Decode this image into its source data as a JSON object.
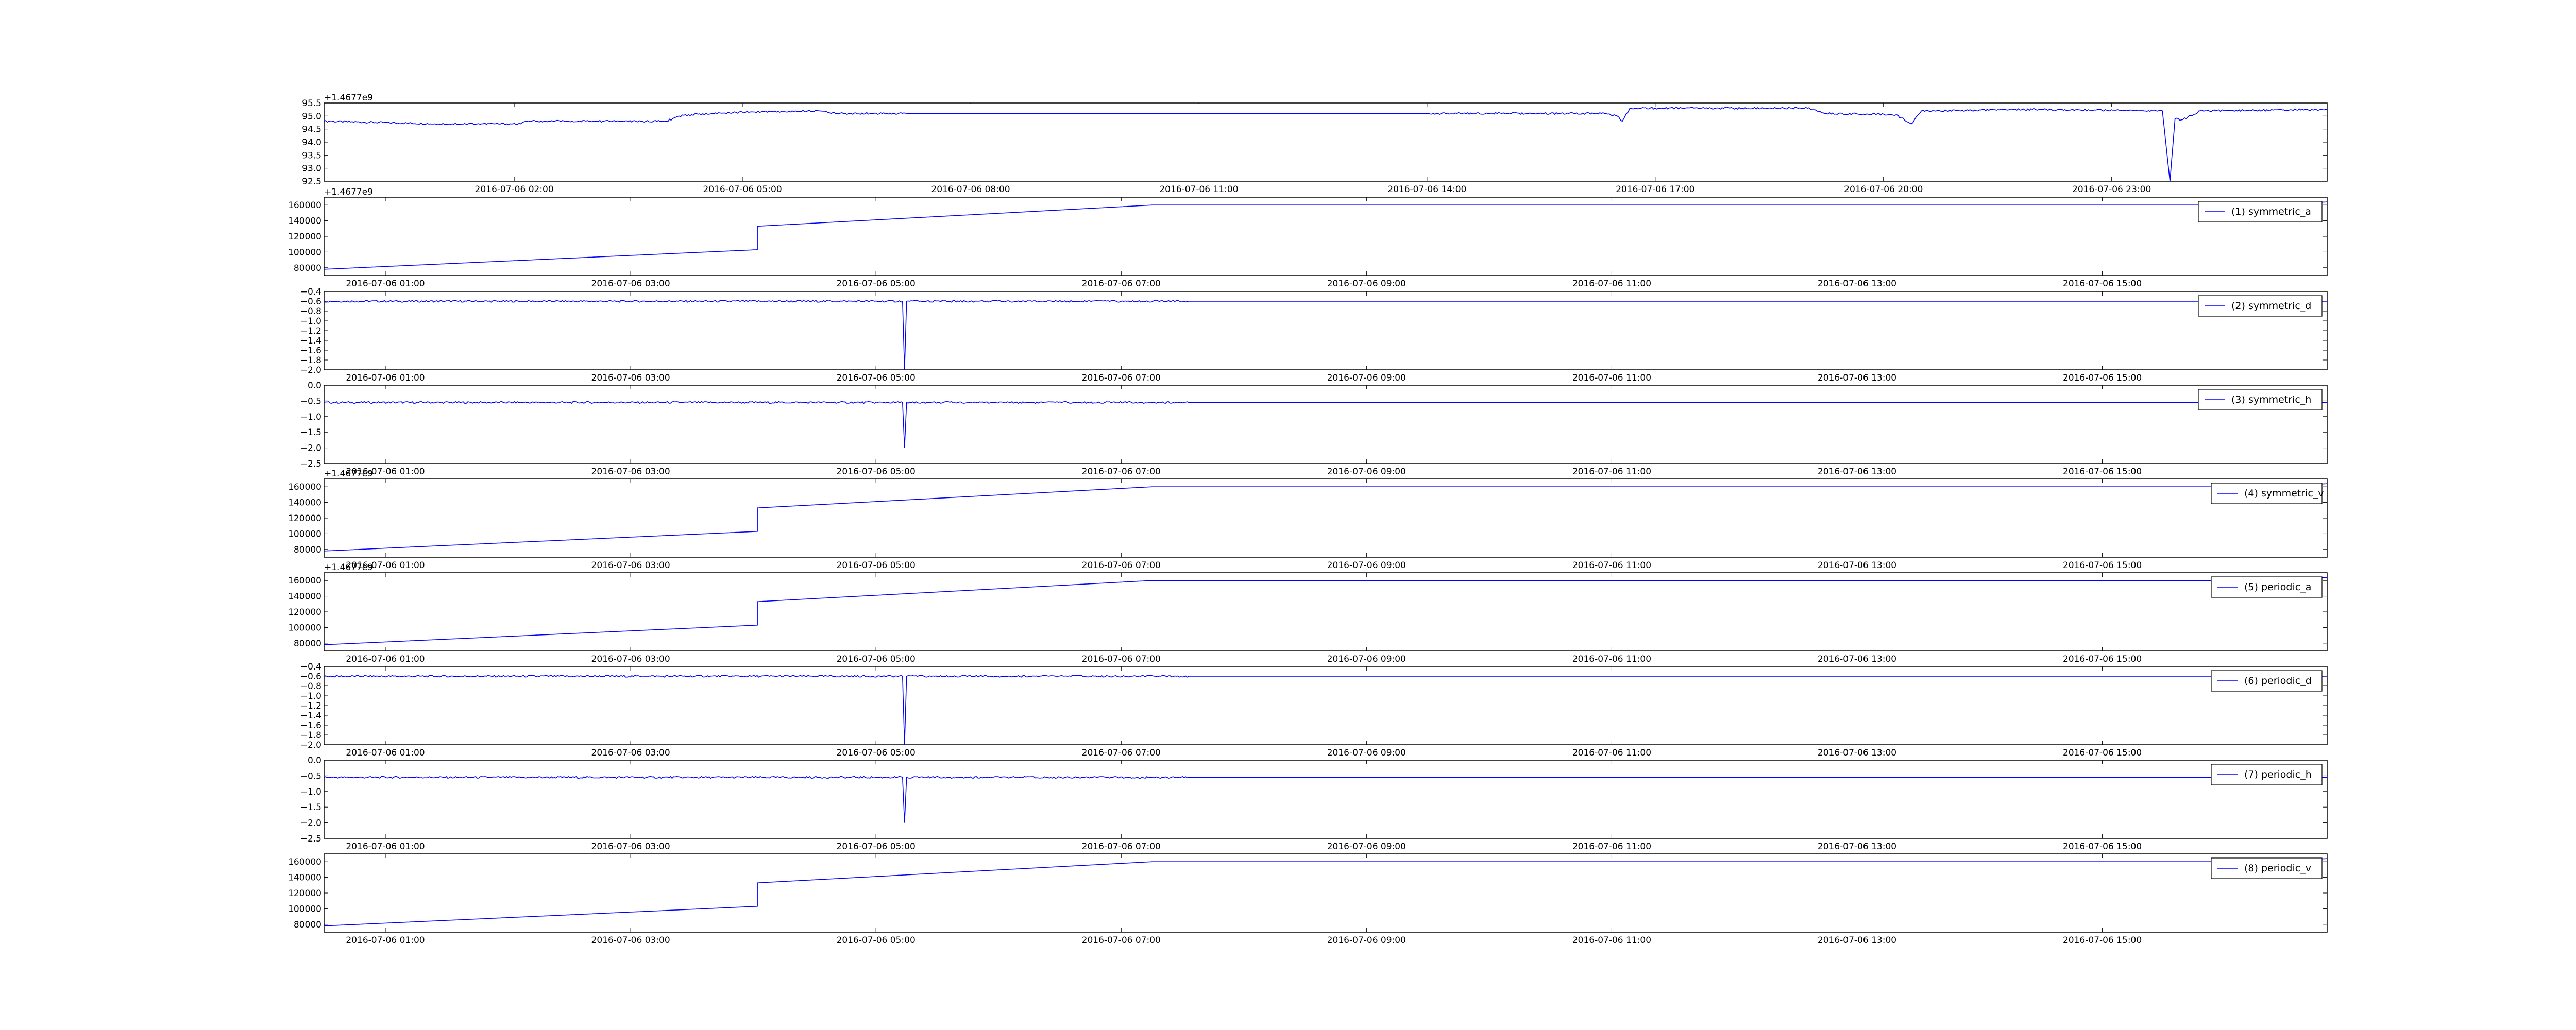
{
  "figure": {
    "background": "#ffffff",
    "line_color": "#0000ff"
  },
  "chart_data": [
    {
      "type": "line",
      "title": "",
      "xlabel": "",
      "ylabel": "",
      "offset_label": "+1.4677e9",
      "ylim": [
        92.5,
        95.5
      ],
      "yticks": [
        92.5,
        93.0,
        93.5,
        94.0,
        94.5,
        95.0,
        95.5
      ],
      "ytick_labels": [
        "92.5",
        "93.0",
        "93.5",
        "94.0",
        "94.5",
        "95.0",
        "95.5"
      ],
      "xlim": [
        "2016-07-05 23:30",
        "2016-07-07 01:50"
      ],
      "xtick_labels": [
        "2016-07-06 02:00",
        "2016-07-06 05:00",
        "2016-07-06 08:00",
        "2016-07-06 11:00",
        "2016-07-06 14:00",
        "2016-07-06 17:00",
        "2016-07-06 20:00",
        "2016-07-06 23:00"
      ],
      "grid": false,
      "legend": null,
      "series": [
        {
          "color": "#0000ff",
          "x": [
            "2016-07-05 23:30",
            "2016-07-06 01:00",
            "2016-07-06 02:05",
            "2016-07-06 02:10",
            "2016-07-06 03:10",
            "2016-07-06 03:15",
            "2016-07-06 04:00",
            "2016-07-06 04:10",
            "2016-07-06 04:20",
            "2016-07-06 05:00",
            "2016-07-06 06:00",
            "2016-07-06 06:10",
            "2016-07-06 07:00",
            "2016-07-06 14:05",
            "2016-07-06 16:20",
            "2016-07-06 16:30",
            "2016-07-06 16:34",
            "2016-07-06 16:40",
            "2016-07-06 17:00",
            "2016-07-06 19:00",
            "2016-07-06 19:15",
            "2016-07-06 20:10",
            "2016-07-06 20:22",
            "2016-07-06 20:30",
            "2016-07-06 20:40",
            "2016-07-06 22:00",
            "2016-07-06 23:40",
            "2016-07-06 23:46",
            "2016-07-06 23:50",
            "2016-07-06 23:55",
            "2016-07-07 00:10",
            "2016-07-07 01:50"
          ],
          "y": [
            94.8,
            94.7,
            94.7,
            94.8,
            94.8,
            94.8,
            94.8,
            95.0,
            95.05,
            95.15,
            95.2,
            95.1,
            95.1,
            95.1,
            95.1,
            95.0,
            94.8,
            95.3,
            95.3,
            95.3,
            95.1,
            95.05,
            94.7,
            95.2,
            95.2,
            95.25,
            95.2,
            92.5,
            94.9,
            94.85,
            95.2,
            95.25
          ]
        }
      ],
      "gaps": [
        [
          "2016-07-06 07:10",
          "2016-07-06 14:00"
        ]
      ]
    },
    {
      "type": "line",
      "title": "",
      "xlabel": "",
      "ylabel": "",
      "offset_label": "+1.4677e9",
      "ylim": [
        70000,
        170000
      ],
      "yticks": [
        80000,
        100000,
        120000,
        140000,
        160000
      ],
      "ytick_labels": [
        "80000",
        "100000",
        "120000",
        "140000",
        "160000"
      ],
      "xlim": [
        "2016-07-06 00:30",
        "2016-07-06 16:50"
      ],
      "xtick_labels": [
        "2016-07-06 01:00",
        "2016-07-06 03:00",
        "2016-07-06 05:00",
        "2016-07-06 07:00",
        "2016-07-06 09:00",
        "2016-07-06 11:00",
        "2016-07-06 13:00",
        "2016-07-06 15:00"
      ],
      "grid": false,
      "legend": {
        "position": "right",
        "label": "(1) symmetric_a"
      },
      "series": [
        {
          "name": "(1) symmetric_a",
          "color": "#0000ff",
          "x": [
            "2016-07-06 00:30",
            "2016-07-06 04:02",
            "2016-07-06 04:02",
            "2016-07-06 07:15",
            "2016-07-06 16:20",
            "2016-07-06 16:50"
          ],
          "y": [
            78000,
            103000,
            133000,
            160000,
            160000,
            164000
          ]
        }
      ]
    },
    {
      "type": "line",
      "title": "",
      "xlabel": "",
      "ylabel": "",
      "ylim": [
        -2.0,
        -0.4
      ],
      "yticks": [
        -2.0,
        -1.8,
        -1.6,
        -1.4,
        -1.2,
        -1.0,
        -0.8,
        -0.6,
        -0.4
      ],
      "ytick_labels": [
        "−2.0",
        "−1.8",
        "−1.6",
        "−1.4",
        "−1.2",
        "−1.0",
        "−0.8",
        "−0.6",
        "−0.4"
      ],
      "xlim": [
        "2016-07-06 00:30",
        "2016-07-06 16:50"
      ],
      "xtick_labels": [
        "2016-07-06 01:00",
        "2016-07-06 03:00",
        "2016-07-06 05:00",
        "2016-07-06 07:00",
        "2016-07-06 09:00",
        "2016-07-06 11:00",
        "2016-07-06 13:00",
        "2016-07-06 15:00"
      ],
      "grid": false,
      "legend": {
        "position": "right",
        "label": "(2) symmetric_d"
      },
      "series": [
        {
          "name": "(2) symmetric_d",
          "color": "#0000ff",
          "x": [
            "2016-07-06 00:30",
            "2016-07-06 05:13",
            "2016-07-06 05:14",
            "2016-07-06 05:15",
            "2016-07-06 07:33",
            "2016-07-06 16:50"
          ],
          "y": [
            -0.6,
            -0.6,
            -2.0,
            -0.6,
            -0.6,
            -0.6
          ]
        }
      ]
    },
    {
      "type": "line",
      "title": "",
      "xlabel": "",
      "ylabel": "",
      "ylim": [
        -2.5,
        0.0
      ],
      "yticks": [
        -2.5,
        -2.0,
        -1.5,
        -1.0,
        -0.5,
        0.0
      ],
      "ytick_labels": [
        "−2.5",
        "−2.0",
        "−1.5",
        "−1.0",
        "−0.5",
        "0.0"
      ],
      "xlim": [
        "2016-07-06 00:30",
        "2016-07-06 16:50"
      ],
      "xtick_labels": [
        "2016-07-06 01:00",
        "2016-07-06 03:00",
        "2016-07-06 05:00",
        "2016-07-06 07:00",
        "2016-07-06 09:00",
        "2016-07-06 11:00",
        "2016-07-06 13:00",
        "2016-07-06 15:00"
      ],
      "grid": false,
      "legend": {
        "position": "right",
        "label": "(3) symmetric_h"
      },
      "series": [
        {
          "name": "(3) symmetric_h",
          "color": "#0000ff",
          "x": [
            "2016-07-06 00:30",
            "2016-07-06 05:13",
            "2016-07-06 05:14",
            "2016-07-06 05:15",
            "2016-07-06 07:33",
            "2016-07-06 16:50"
          ],
          "y": [
            -0.55,
            -0.55,
            -2.0,
            -0.55,
            -0.55,
            -0.55
          ]
        }
      ]
    },
    {
      "type": "line",
      "title": "",
      "xlabel": "",
      "ylabel": "",
      "offset_label": "+1.4677e9",
      "ylim": [
        70000,
        170000
      ],
      "yticks": [
        80000,
        100000,
        120000,
        140000,
        160000
      ],
      "ytick_labels": [
        "80000",
        "100000",
        "120000",
        "140000",
        "160000"
      ],
      "xlim": [
        "2016-07-06 00:30",
        "2016-07-06 16:50"
      ],
      "xtick_labels": [
        "2016-07-06 01:00",
        "2016-07-06 03:00",
        "2016-07-06 05:00",
        "2016-07-06 07:00",
        "2016-07-06 09:00",
        "2016-07-06 11:00",
        "2016-07-06 13:00",
        "2016-07-06 15:00"
      ],
      "grid": false,
      "legend": {
        "position": "right",
        "label": "(4) symmetric_v"
      },
      "series": [
        {
          "name": "(4) symmetric_v",
          "color": "#0000ff",
          "x": [
            "2016-07-06 00:30",
            "2016-07-06 04:02",
            "2016-07-06 04:02",
            "2016-07-06 07:15",
            "2016-07-06 16:20",
            "2016-07-06 16:50"
          ],
          "y": [
            78000,
            103000,
            133000,
            160000,
            160000,
            164000
          ]
        }
      ]
    },
    {
      "type": "line",
      "title": "",
      "xlabel": "",
      "ylabel": "",
      "offset_label": "+1.4677e9",
      "ylim": [
        70000,
        170000
      ],
      "yticks": [
        80000,
        100000,
        120000,
        140000,
        160000
      ],
      "ytick_labels": [
        "80000",
        "100000",
        "120000",
        "140000",
        "160000"
      ],
      "xlim": [
        "2016-07-06 00:30",
        "2016-07-06 16:50"
      ],
      "xtick_labels": [
        "2016-07-06 01:00",
        "2016-07-06 03:00",
        "2016-07-06 05:00",
        "2016-07-06 07:00",
        "2016-07-06 09:00",
        "2016-07-06 11:00",
        "2016-07-06 13:00",
        "2016-07-06 15:00"
      ],
      "grid": false,
      "legend": {
        "position": "right",
        "label": "(5) periodic_a"
      },
      "series": [
        {
          "name": "(5) periodic_a",
          "color": "#0000ff",
          "x": [
            "2016-07-06 00:30",
            "2016-07-06 04:02",
            "2016-07-06 04:02",
            "2016-07-06 07:15",
            "2016-07-06 16:20",
            "2016-07-06 16:50"
          ],
          "y": [
            78000,
            103000,
            133000,
            160000,
            160000,
            164000
          ]
        }
      ]
    },
    {
      "type": "line",
      "title": "",
      "xlabel": "",
      "ylabel": "",
      "ylim": [
        -2.0,
        -0.4
      ],
      "yticks": [
        -2.0,
        -1.8,
        -1.6,
        -1.4,
        -1.2,
        -1.0,
        -0.8,
        -0.6,
        -0.4
      ],
      "ytick_labels": [
        "−2.0",
        "−1.8",
        "−1.6",
        "−1.4",
        "−1.2",
        "−1.0",
        "−0.8",
        "−0.6",
        "−0.4"
      ],
      "xlim": [
        "2016-07-06 00:30",
        "2016-07-06 16:50"
      ],
      "xtick_labels": [
        "2016-07-06 01:00",
        "2016-07-06 03:00",
        "2016-07-06 05:00",
        "2016-07-06 07:00",
        "2016-07-06 09:00",
        "2016-07-06 11:00",
        "2016-07-06 13:00",
        "2016-07-06 15:00"
      ],
      "grid": false,
      "legend": {
        "position": "right",
        "label": "(6) periodic_d"
      },
      "series": [
        {
          "name": "(6) periodic_d",
          "color": "#0000ff",
          "x": [
            "2016-07-06 00:30",
            "2016-07-06 05:13",
            "2016-07-06 05:14",
            "2016-07-06 05:15",
            "2016-07-06 07:33",
            "2016-07-06 16:50"
          ],
          "y": [
            -0.6,
            -0.6,
            -2.0,
            -0.6,
            -0.6,
            -0.6
          ]
        }
      ]
    },
    {
      "type": "line",
      "title": "",
      "xlabel": "",
      "ylabel": "",
      "ylim": [
        -2.5,
        0.0
      ],
      "yticks": [
        -2.5,
        -2.0,
        -1.5,
        -1.0,
        -0.5,
        0.0
      ],
      "ytick_labels": [
        "−2.5",
        "−2.0",
        "−1.5",
        "−1.0",
        "−0.5",
        "0.0"
      ],
      "xlim": [
        "2016-07-06 00:30",
        "2016-07-06 16:50"
      ],
      "xtick_labels": [
        "2016-07-06 01:00",
        "2016-07-06 03:00",
        "2016-07-06 05:00",
        "2016-07-06 07:00",
        "2016-07-06 09:00",
        "2016-07-06 11:00",
        "2016-07-06 13:00",
        "2016-07-06 15:00"
      ],
      "grid": false,
      "legend": {
        "position": "right",
        "label": "(7) periodic_h"
      },
      "series": [
        {
          "name": "(7) periodic_h",
          "color": "#0000ff",
          "x": [
            "2016-07-06 00:30",
            "2016-07-06 05:13",
            "2016-07-06 05:14",
            "2016-07-06 05:15",
            "2016-07-06 07:33",
            "2016-07-06 16:50"
          ],
          "y": [
            -0.55,
            -0.55,
            -2.0,
            -0.55,
            -0.55,
            -0.55
          ]
        }
      ]
    },
    {
      "type": "line",
      "title": "",
      "xlabel": "",
      "ylabel": "",
      "ylim": [
        70000,
        170000
      ],
      "yticks": [
        80000,
        100000,
        120000,
        140000,
        160000
      ],
      "ytick_labels": [
        "80000",
        "100000",
        "120000",
        "140000",
        "160000"
      ],
      "xlim": [
        "2016-07-06 00:30",
        "2016-07-06 16:50"
      ],
      "xtick_labels": [
        "2016-07-06 01:00",
        "2016-07-06 03:00",
        "2016-07-06 05:00",
        "2016-07-06 07:00",
        "2016-07-06 09:00",
        "2016-07-06 11:00",
        "2016-07-06 13:00",
        "2016-07-06 15:00"
      ],
      "grid": false,
      "legend": {
        "position": "right",
        "label": "(8) periodic_v"
      },
      "series": [
        {
          "name": "(8) periodic_v",
          "color": "#0000ff",
          "x": [
            "2016-07-06 00:30",
            "2016-07-06 04:02",
            "2016-07-06 04:02",
            "2016-07-06 07:15",
            "2016-07-06 16:20",
            "2016-07-06 16:50"
          ],
          "y": [
            78000,
            103000,
            133000,
            160000,
            160000,
            164000
          ]
        }
      ]
    }
  ]
}
